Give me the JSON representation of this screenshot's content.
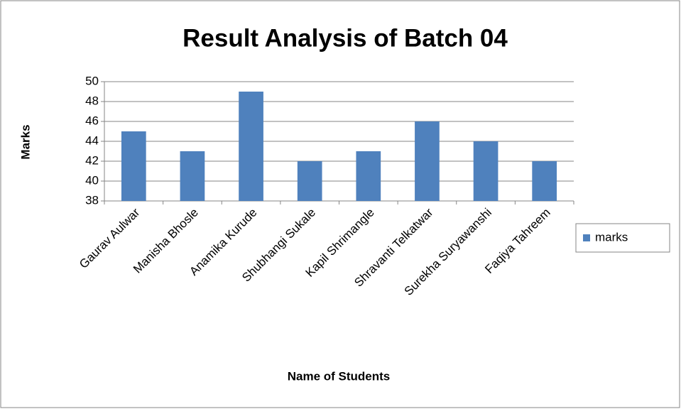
{
  "chart_data": {
    "type": "bar",
    "title": "Result Analysis of Batch 04",
    "x_label": "Name of Students",
    "y_label": "Marks",
    "categories": [
      "Gaurav Aulwar",
      "Manisha Bhosle",
      "Anamika Kurude",
      "Shubhangi Sukale",
      "Kapil Shrimangle",
      "Shravanti Telkatwar",
      "Surekha Suryawanshi",
      "Faqiya Tahreem"
    ],
    "series": [
      {
        "name": "marks",
        "color": "#4f81bd",
        "values": [
          45,
          43,
          49,
          42,
          43,
          46,
          44,
          42
        ]
      }
    ],
    "ylim": [
      38,
      50
    ],
    "yticks": [
      38,
      40,
      42,
      44,
      46,
      48,
      50
    ],
    "grid": true,
    "legend": "right"
  }
}
